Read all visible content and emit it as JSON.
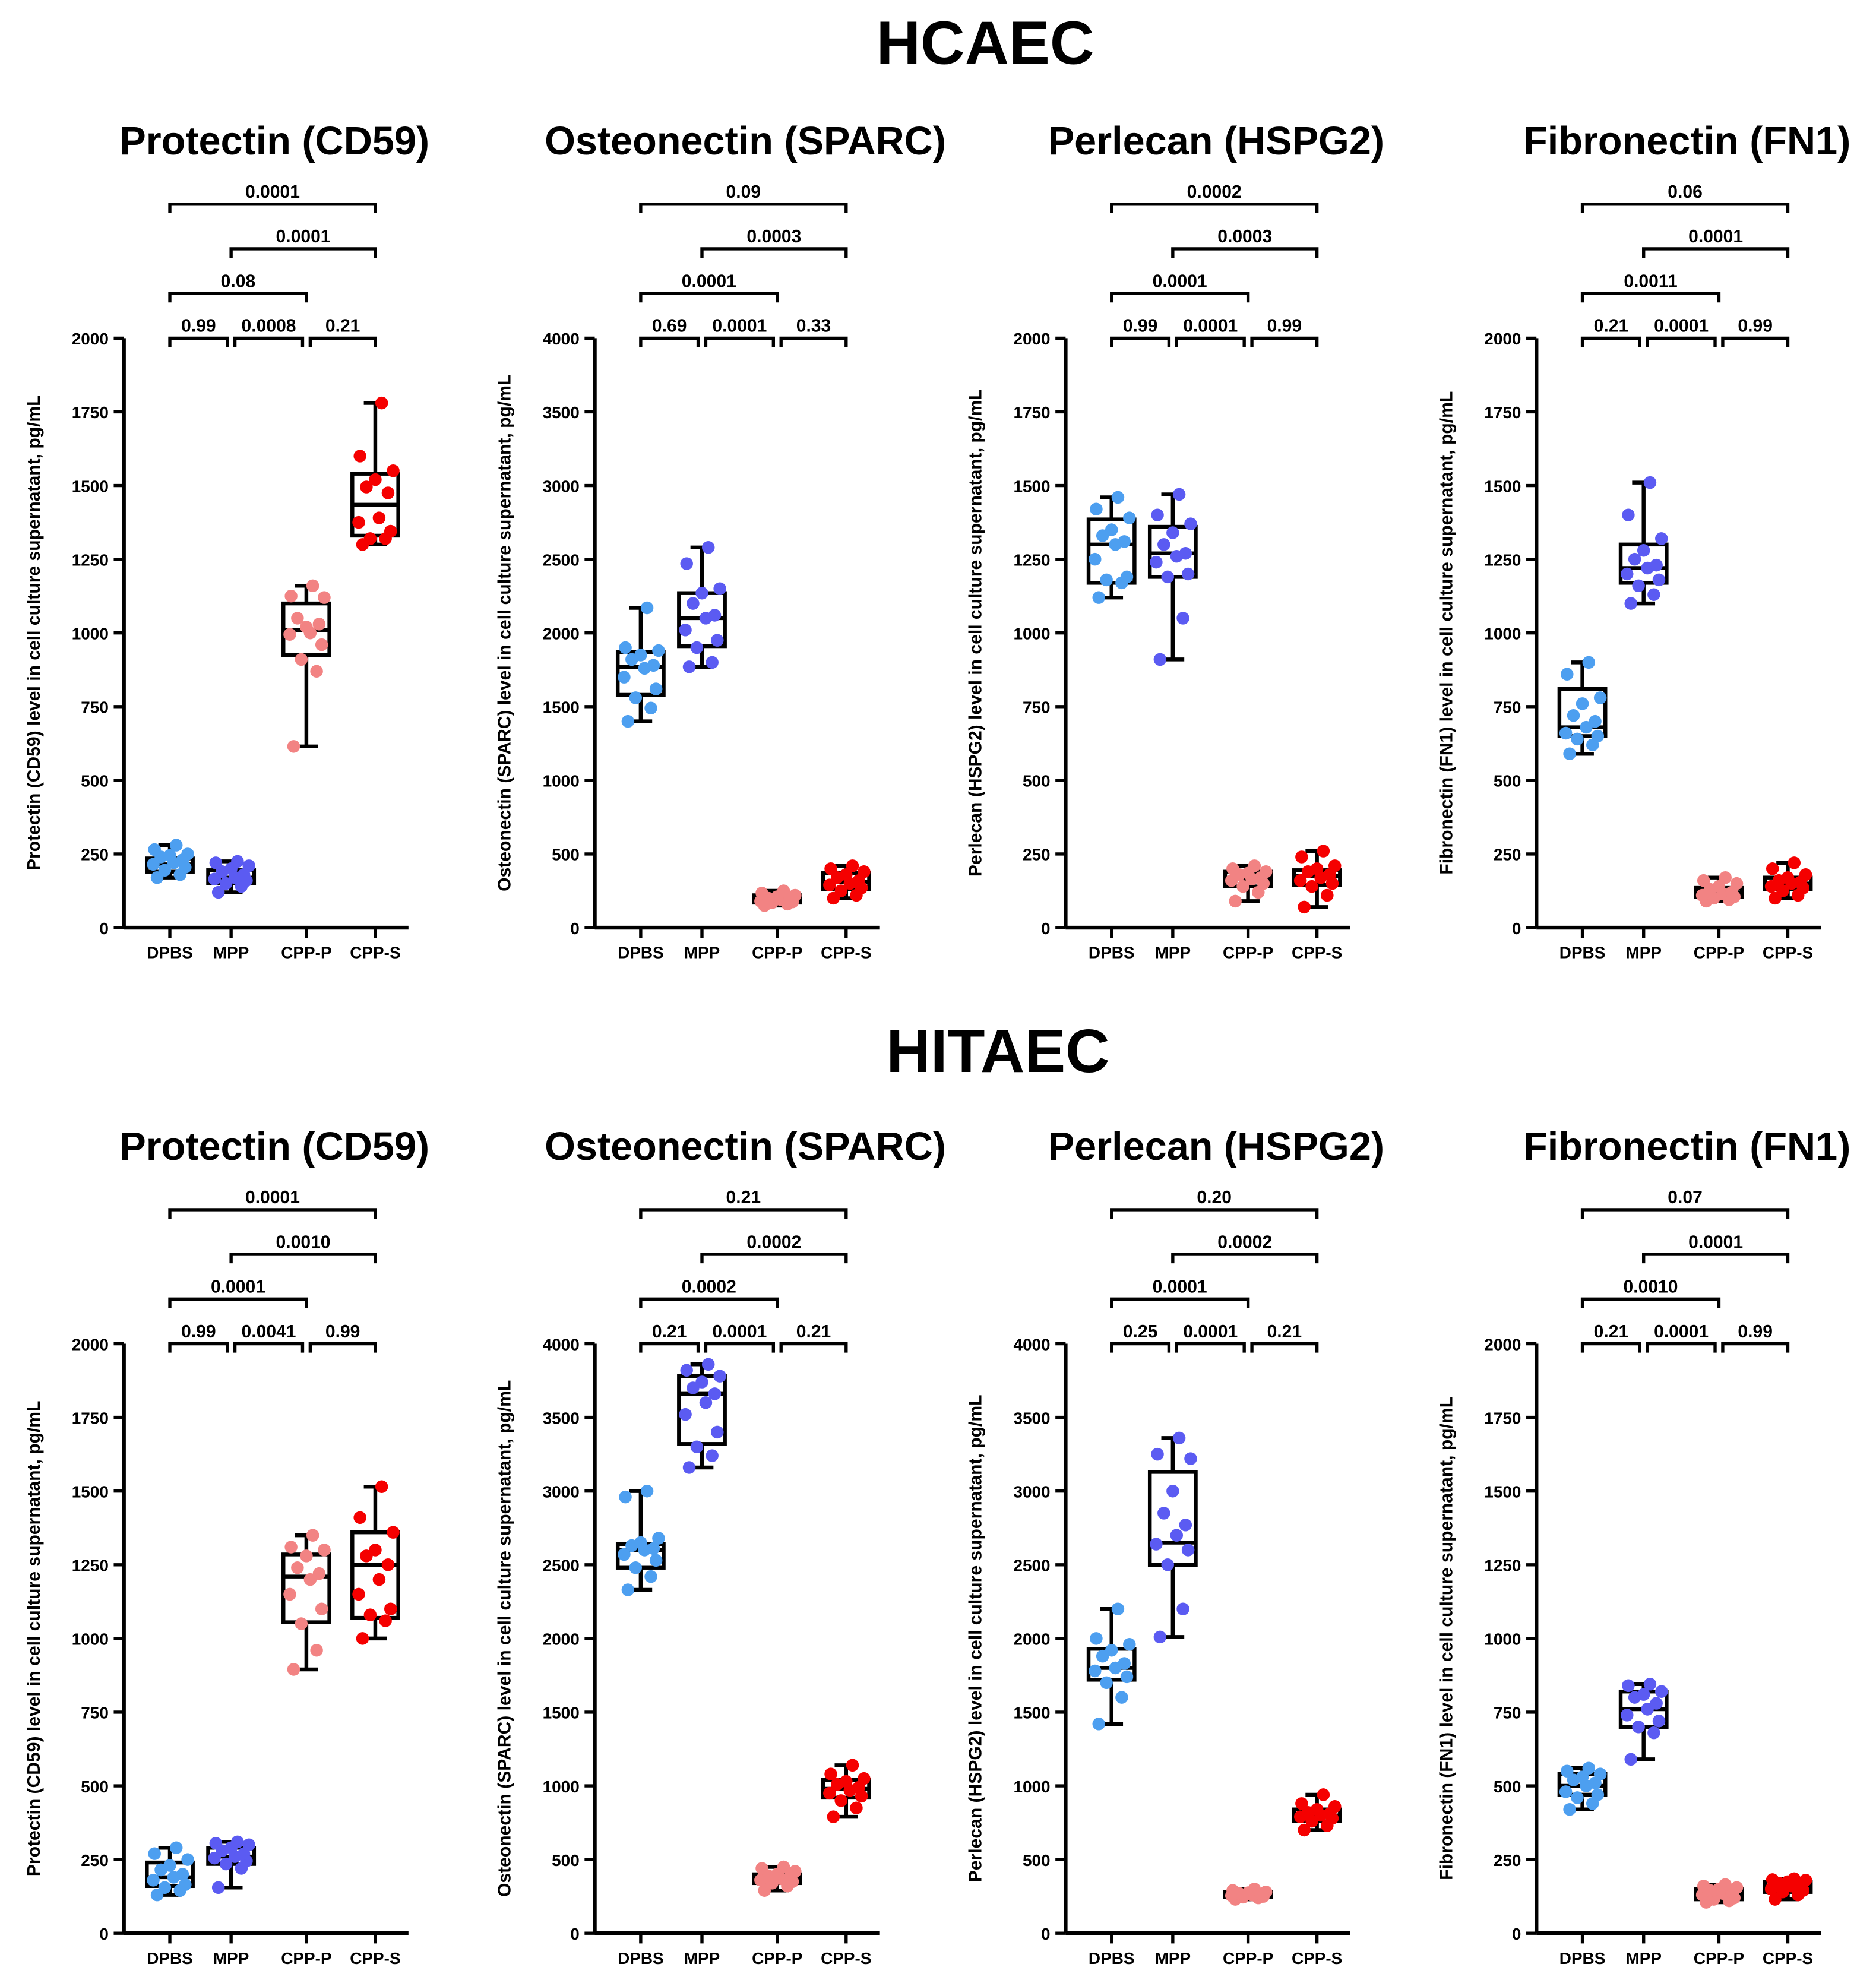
{
  "headings": [
    "HCAEC",
    "HITAEC"
  ],
  "colors": {
    "DPBS": "#4d9ff0",
    "MPP": "#5b5bf2",
    "CPP-P": "#f28383",
    "CPP-S": "#f50000"
  },
  "chart_data": [
    {
      "type": "box",
      "cell": "HCAEC",
      "title": "Protectin (CD59)",
      "ylabel": "Protectin (CD59) level in cell culture supernatant, pg/mL",
      "ylim": [
        0,
        2000
      ],
      "ytick_step": 250,
      "categories": [
        "DPBS",
        "MPP",
        "CPP-P",
        "CPP-S"
      ],
      "boxes": [
        [
          170,
          190,
          215,
          235,
          280
        ],
        [
          120,
          150,
          170,
          195,
          225
        ],
        [
          615,
          925,
          1010,
          1100,
          1160
        ],
        [
          1300,
          1330,
          1435,
          1540,
          1780
        ]
      ],
      "points": [
        [
          170,
          180,
          195,
          205,
          215,
          220,
          230,
          240,
          245,
          250,
          265,
          280
        ],
        [
          120,
          140,
          150,
          160,
          165,
          170,
          180,
          190,
          200,
          210,
          220,
          225
        ],
        [
          615,
          870,
          910,
          960,
          995,
          1000,
          1030,
          1050,
          1020,
          1120,
          1125,
          1160
        ],
        [
          1300,
          1320,
          1320,
          1345,
          1375,
          1390,
          1475,
          1495,
          1520,
          1550,
          1600,
          1780
        ]
      ],
      "pvalues": {
        "DPBS-MPP": "0.99",
        "MPP-CPP-P": "0.0008",
        "CPP-P-CPP-S": "0.21",
        "DPBS-CPP-P": "0.08",
        "MPP-CPP-S": "0.0001",
        "DPBS-CPP-S": "0.0001"
      }
    },
    {
      "type": "box",
      "cell": "HCAEC",
      "title": "Osteonectin (SPARC)",
      "ylabel": "Osteonectin (SPARC) level in cell culture supernatant, pg/mL",
      "ylim": [
        0,
        4000
      ],
      "ytick_step": 500,
      "categories": [
        "DPBS",
        "MPP",
        "CPP-P",
        "CPP-S"
      ],
      "boxes": [
        [
          1400,
          1580,
          1770,
          1870,
          2170
        ],
        [
          1770,
          1910,
          2100,
          2270,
          2580
        ],
        [
          150,
          170,
          190,
          220,
          250
        ],
        [
          200,
          260,
          310,
          370,
          420
        ]
      ],
      "points": [
        [
          1400,
          1490,
          1560,
          1620,
          1700,
          1760,
          1780,
          1820,
          1850,
          1880,
          1900,
          2170
        ],
        [
          1770,
          1800,
          1900,
          1950,
          2020,
          2100,
          2120,
          2200,
          2270,
          2300,
          2470,
          2580
        ],
        [
          150,
          160,
          170,
          175,
          180,
          190,
          195,
          200,
          210,
          220,
          235,
          250
        ],
        [
          200,
          220,
          250,
          270,
          290,
          300,
          320,
          340,
          360,
          380,
          400,
          420
        ]
      ],
      "pvalues": {
        "DPBS-MPP": "0.69",
        "MPP-CPP-P": "0.0001",
        "CPP-P-CPP-S": "0.33",
        "DPBS-CPP-P": "0.0001",
        "MPP-CPP-S": "0.0003",
        "DPBS-CPP-S": "0.09"
      }
    },
    {
      "type": "box",
      "cell": "HCAEC",
      "title": "Perlecan (HSPG2)",
      "ylabel": "Perlecan (HSPG2) level in cell culture supernatant, pg/mL",
      "ylim": [
        0,
        2000
      ],
      "ytick_step": 250,
      "categories": [
        "DPBS",
        "MPP",
        "CPP-P",
        "CPP-S"
      ],
      "boxes": [
        [
          1120,
          1170,
          1300,
          1385,
          1460
        ],
        [
          910,
          1190,
          1270,
          1360,
          1470
        ],
        [
          90,
          140,
          165,
          190,
          210
        ],
        [
          70,
          145,
          175,
          195,
          260
        ]
      ],
      "points": [
        [
          1120,
          1170,
          1180,
          1190,
          1250,
          1300,
          1310,
          1330,
          1350,
          1390,
          1420,
          1460
        ],
        [
          910,
          1050,
          1190,
          1200,
          1240,
          1260,
          1270,
          1300,
          1340,
          1370,
          1400,
          1470
        ],
        [
          90,
          120,
          140,
          150,
          160,
          165,
          170,
          180,
          185,
          190,
          200,
          210
        ],
        [
          70,
          110,
          140,
          150,
          160,
          170,
          180,
          190,
          200,
          210,
          240,
          260
        ]
      ],
      "pvalues": {
        "DPBS-MPP": "0.99",
        "MPP-CPP-P": "0.0001",
        "CPP-P-CPP-S": "0.99",
        "DPBS-CPP-P": "0.0001",
        "MPP-CPP-S": "0.0003",
        "DPBS-CPP-S": "0.0002"
      }
    },
    {
      "type": "box",
      "cell": "HCAEC",
      "title": "Fibronectin (FN1)",
      "ylabel": "Fibronectin (FN1) level in cell culture supernatant, pg/mL",
      "ylim": [
        0,
        2000
      ],
      "ytick_step": 250,
      "categories": [
        "DPBS",
        "MPP",
        "CPP-P",
        "CPP-S"
      ],
      "boxes": [
        [
          590,
          650,
          680,
          810,
          900
        ],
        [
          1100,
          1170,
          1220,
          1300,
          1510
        ],
        [
          90,
          105,
          120,
          135,
          170
        ],
        [
          100,
          130,
          150,
          170,
          220
        ]
      ],
      "points": [
        [
          590,
          620,
          640,
          650,
          660,
          680,
          700,
          720,
          760,
          780,
          860,
          900
        ],
        [
          1100,
          1130,
          1160,
          1180,
          1200,
          1220,
          1230,
          1250,
          1280,
          1320,
          1400,
          1510
        ],
        [
          90,
          95,
          100,
          105,
          110,
          115,
          120,
          130,
          140,
          150,
          160,
          170
        ],
        [
          100,
          110,
          125,
          135,
          140,
          150,
          155,
          160,
          170,
          180,
          200,
          220
        ]
      ],
      "pvalues": {
        "DPBS-MPP": "0.21",
        "MPP-CPP-P": "0.0001",
        "CPP-P-CPP-S": "0.99",
        "DPBS-CPP-P": "0.0011",
        "MPP-CPP-S": "0.0001",
        "DPBS-CPP-S": "0.06"
      }
    },
    {
      "type": "box",
      "cell": "HITAEC",
      "title": "Protectin (CD59)",
      "ylabel": "Protectin (CD59) level in cell culture supernatant, pg/mL",
      "ylim": [
        0,
        2000
      ],
      "ytick_step": 250,
      "categories": [
        "DPBS",
        "MPP",
        "CPP-P",
        "CPP-S"
      ],
      "boxes": [
        [
          130,
          160,
          190,
          240,
          290
        ],
        [
          155,
          235,
          260,
          290,
          310
        ],
        [
          895,
          1055,
          1210,
          1285,
          1350
        ],
        [
          1000,
          1070,
          1250,
          1360,
          1515
        ]
      ],
      "points": [
        [
          130,
          145,
          155,
          165,
          180,
          190,
          200,
          215,
          230,
          250,
          270,
          290
        ],
        [
          155,
          220,
          235,
          245,
          255,
          260,
          270,
          280,
          290,
          300,
          305,
          310
        ],
        [
          895,
          960,
          1050,
          1100,
          1150,
          1200,
          1220,
          1240,
          1280,
          1300,
          1310,
          1350
        ],
        [
          1000,
          1060,
          1080,
          1100,
          1150,
          1200,
          1250,
          1280,
          1300,
          1360,
          1410,
          1515
        ]
      ],
      "pvalues": {
        "DPBS-MPP": "0.99",
        "MPP-CPP-P": "0.0041",
        "CPP-P-CPP-S": "0.99",
        "DPBS-CPP-P": "0.0001",
        "MPP-CPP-S": "0.0010",
        "DPBS-CPP-S": "0.0001"
      }
    },
    {
      "type": "box",
      "cell": "HITAEC",
      "title": "Osteonectin (SPARC)",
      "ylabel": "Osteonectin (SPARC) level in cell culture supernatant, pg/mL",
      "ylim": [
        0,
        4000
      ],
      "ytick_step": 500,
      "categories": [
        "DPBS",
        "MPP",
        "CPP-P",
        "CPP-S"
      ],
      "boxes": [
        [
          2330,
          2480,
          2600,
          2640,
          3000
        ],
        [
          3160,
          3320,
          3660,
          3780,
          3860
        ],
        [
          290,
          340,
          370,
          400,
          450
        ],
        [
          790,
          920,
          980,
          1040,
          1140
        ]
      ],
      "points": [
        [
          2330,
          2420,
          2480,
          2530,
          2570,
          2600,
          2610,
          2630,
          2650,
          2680,
          2960,
          3000
        ],
        [
          3160,
          3240,
          3300,
          3400,
          3520,
          3600,
          3660,
          3700,
          3740,
          3780,
          3820,
          3860
        ],
        [
          290,
          320,
          340,
          350,
          360,
          370,
          380,
          390,
          400,
          420,
          440,
          450
        ],
        [
          790,
          850,
          900,
          930,
          950,
          970,
          990,
          1010,
          1030,
          1050,
          1080,
          1140
        ]
      ],
      "pvalues": {
        "DPBS-MPP": "0.21",
        "MPP-CPP-P": "0.0001",
        "CPP-P-CPP-S": "0.21",
        "DPBS-CPP-P": "0.0002",
        "MPP-CPP-S": "0.0002",
        "DPBS-CPP-S": "0.21"
      }
    },
    {
      "type": "box",
      "cell": "HITAEC",
      "title": "Perlecan (HSPG2)",
      "ylabel": "Perlecan (HSPG2) level in cell culture supernatant, pg/mL",
      "ylim": [
        0,
        4000
      ],
      "ytick_step": 500,
      "categories": [
        "DPBS",
        "MPP",
        "CPP-P",
        "CPP-S"
      ],
      "boxes": [
        [
          1420,
          1720,
          1800,
          1930,
          2200
        ],
        [
          2010,
          2500,
          2650,
          3130,
          3360
        ],
        [
          230,
          245,
          260,
          280,
          300
        ],
        [
          700,
          760,
          800,
          840,
          940
        ]
      ],
      "points": [
        [
          1420,
          1600,
          1700,
          1740,
          1780,
          1800,
          1830,
          1880,
          1920,
          1960,
          2000,
          2200
        ],
        [
          2010,
          2200,
          2500,
          2600,
          2640,
          2700,
          2770,
          2850,
          3000,
          3220,
          3250,
          3360
        ],
        [
          230,
          240,
          245,
          250,
          255,
          260,
          265,
          270,
          275,
          280,
          290,
          300
        ],
        [
          700,
          730,
          760,
          780,
          790,
          800,
          810,
          820,
          840,
          860,
          880,
          940
        ]
      ],
      "pvalues": {
        "DPBS-MPP": "0.25",
        "MPP-CPP-P": "0.0001",
        "CPP-P-CPP-S": "0.21",
        "DPBS-CPP-P": "0.0001",
        "MPP-CPP-S": "0.0002",
        "DPBS-CPP-S": "0.20"
      }
    },
    {
      "type": "box",
      "cell": "HITAEC",
      "title": "Fibronectin (FN1)",
      "ylabel": "Fibronectin (FN1) level in cell culture supernatant, pg/mL",
      "ylim": [
        0,
        2000
      ],
      "ytick_step": 250,
      "categories": [
        "DPBS",
        "MPP",
        "CPP-P",
        "CPP-S"
      ],
      "boxes": [
        [
          420,
          470,
          500,
          540,
          560
        ],
        [
          590,
          700,
          760,
          820,
          845
        ],
        [
          105,
          115,
          135,
          150,
          165
        ],
        [
          115,
          140,
          160,
          175,
          185
        ]
      ],
      "points": [
        [
          420,
          440,
          460,
          470,
          480,
          500,
          510,
          520,
          530,
          540,
          550,
          560
        ],
        [
          590,
          680,
          700,
          720,
          740,
          760,
          780,
          800,
          810,
          820,
          840,
          845
        ],
        [
          105,
          110,
          115,
          120,
          130,
          135,
          140,
          145,
          150,
          155,
          160,
          165
        ],
        [
          115,
          130,
          140,
          145,
          150,
          160,
          165,
          170,
          175,
          180,
          182,
          185
        ]
      ],
      "pvalues": {
        "DPBS-MPP": "0.21",
        "MPP-CPP-P": "0.0001",
        "CPP-P-CPP-S": "0.99",
        "DPBS-CPP-P": "0.0010",
        "MPP-CPP-S": "0.0001",
        "DPBS-CPP-S": "0.07"
      }
    }
  ]
}
